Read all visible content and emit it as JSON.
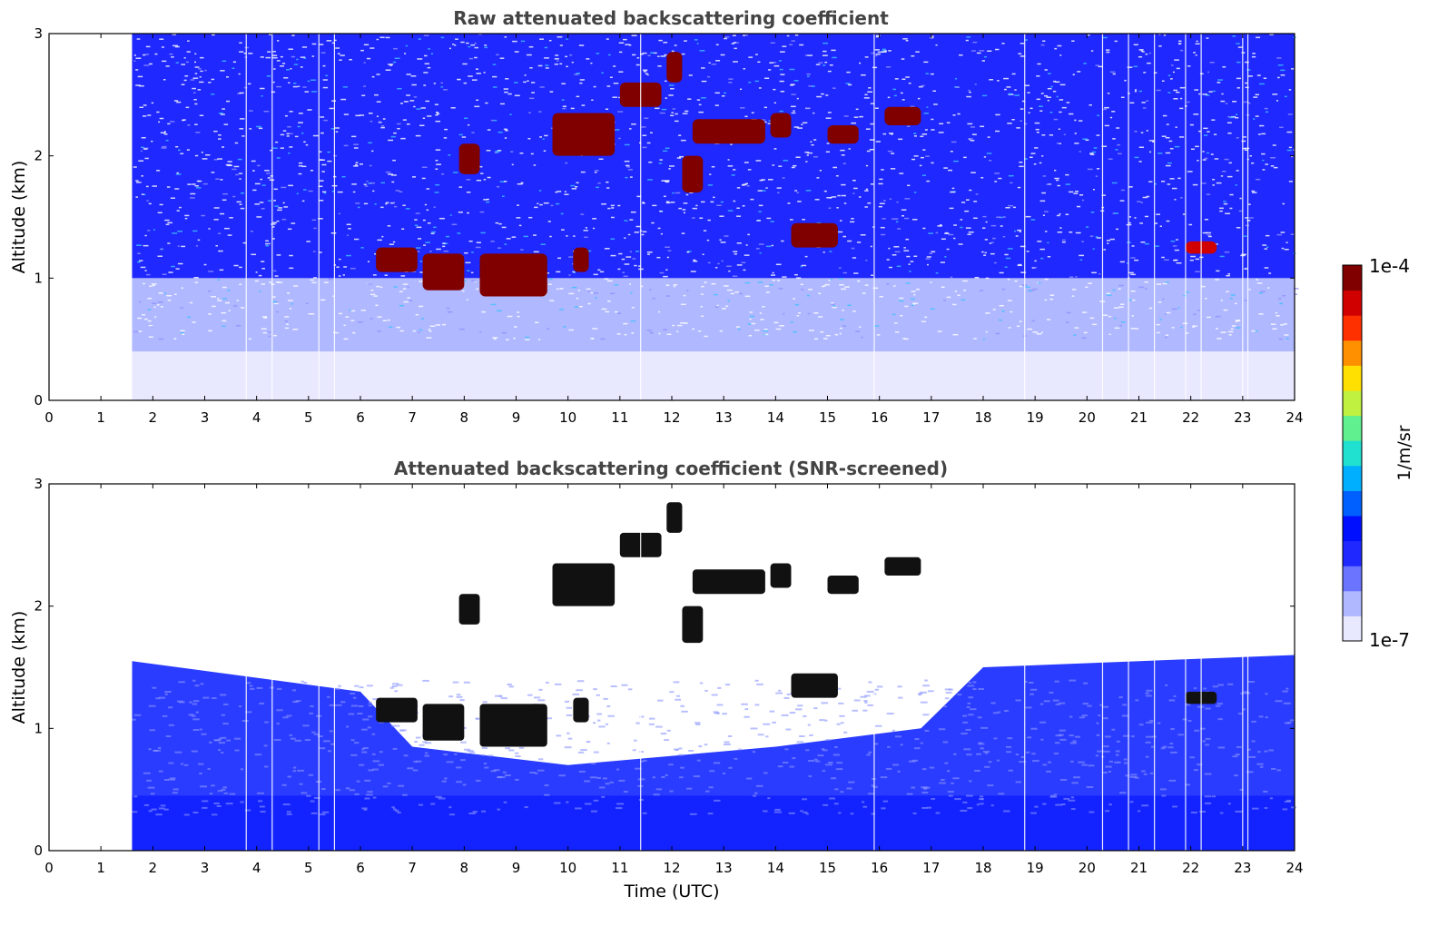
{
  "chart_data": [
    {
      "type": "heatmap",
      "title": "Raw attenuated backscattering coefficient",
      "xlabel": "",
      "ylabel": "Altitude (km)",
      "xlim": [
        0,
        24
      ],
      "ylim": [
        0,
        3
      ],
      "x_ticks": [
        "0",
        "1",
        "2",
        "3",
        "4",
        "5",
        "6",
        "7",
        "8",
        "9",
        "10",
        "11",
        "12",
        "13",
        "14",
        "15",
        "16",
        "17",
        "18",
        "19",
        "20",
        "21",
        "22",
        "23",
        "24"
      ],
      "y_ticks": [
        "0",
        "1",
        "2",
        "3"
      ],
      "data_start_time": 1.6,
      "background_level": [
        {
          "alt_top": 0.4,
          "value": 1.5e-07
        },
        {
          "alt_top": 1.0,
          "value": 2e-07
        },
        {
          "alt_top": 3.0,
          "value": 4e-07
        }
      ],
      "cloud_layers": [
        {
          "t_start": 6.3,
          "t_end": 7.1,
          "alt_base": 1.05,
          "alt_top": 1.25,
          "value": 8e-05
        },
        {
          "t_start": 7.2,
          "t_end": 8.0,
          "alt_base": 0.9,
          "alt_top": 1.2,
          "value": 9e-05
        },
        {
          "t_start": 8.3,
          "t_end": 9.6,
          "alt_base": 0.85,
          "alt_top": 1.2,
          "value": 8e-05
        },
        {
          "t_start": 7.9,
          "t_end": 8.3,
          "alt_base": 1.85,
          "alt_top": 2.1,
          "value": 9e-05
        },
        {
          "t_start": 10.1,
          "t_end": 10.4,
          "alt_base": 1.05,
          "alt_top": 1.25,
          "value": 8e-05
        },
        {
          "t_start": 11.0,
          "t_end": 11.8,
          "alt_base": 2.4,
          "alt_top": 2.6,
          "value": 9e-05
        },
        {
          "t_start": 11.9,
          "t_end": 12.2,
          "alt_base": 2.6,
          "alt_top": 2.85,
          "value": 8e-05
        },
        {
          "t_start": 12.4,
          "t_end": 13.8,
          "alt_base": 2.1,
          "alt_top": 2.3,
          "value": 9e-05
        },
        {
          "t_start": 13.9,
          "t_end": 14.3,
          "alt_base": 2.15,
          "alt_top": 2.35,
          "value": 8e-05
        },
        {
          "t_start": 14.3,
          "t_end": 15.2,
          "alt_base": 1.25,
          "alt_top": 1.45,
          "value": 7e-05
        },
        {
          "t_start": 15.0,
          "t_end": 15.6,
          "alt_base": 2.1,
          "alt_top": 2.25,
          "value": 8e-05
        },
        {
          "t_start": 16.1,
          "t_end": 16.8,
          "alt_base": 2.25,
          "alt_top": 2.4,
          "value": 9e-05
        },
        {
          "t_start": 9.7,
          "t_end": 10.9,
          "alt_base": 2.0,
          "alt_top": 2.35,
          "value": 8e-05
        },
        {
          "t_start": 12.2,
          "t_end": 12.6,
          "alt_base": 1.7,
          "alt_top": 2.0,
          "value": 7e-05
        },
        {
          "t_start": 21.9,
          "t_end": 22.5,
          "alt_base": 1.2,
          "alt_top": 1.3,
          "value": 6e-05
        }
      ],
      "dropouts": [
        3.8,
        4.3,
        5.2,
        5.5,
        11.4,
        15.9,
        18.8,
        20.3,
        20.8,
        21.3,
        21.9,
        22.2,
        23.0,
        23.1
      ]
    },
    {
      "type": "heatmap",
      "title": "Attenuated backscattering coefficient (SNR-screened)",
      "xlabel": "Time (UTC)",
      "ylabel": "Altitude (km)",
      "xlim": [
        0,
        24
      ],
      "ylim": [
        0,
        3
      ],
      "x_ticks": [
        "0",
        "1",
        "2",
        "3",
        "4",
        "5",
        "6",
        "7",
        "8",
        "9",
        "10",
        "11",
        "12",
        "13",
        "14",
        "15",
        "16",
        "17",
        "18",
        "19",
        "20",
        "21",
        "22",
        "23",
        "24"
      ],
      "y_ticks": [
        "0",
        "1",
        "2",
        "3"
      ],
      "data_start_time": 1.6,
      "screened_top_altitude": [
        {
          "t": 1.6,
          "alt": 1.55
        },
        {
          "t": 6.0,
          "alt": 1.3
        },
        {
          "t": 7.0,
          "alt": 0.85
        },
        {
          "t": 10.0,
          "alt": 0.7
        },
        {
          "t": 14.0,
          "alt": 0.85
        },
        {
          "t": 16.8,
          "alt": 1.0
        },
        {
          "t": 18.0,
          "alt": 1.5
        },
        {
          "t": 24.0,
          "alt": 1.6
        }
      ]
    }
  ],
  "colorbar": {
    "label": "1/m/sr",
    "max_label": "1e-4",
    "min_label": "1e-7",
    "scale": "log",
    "range": [
      1e-07,
      0.0001
    ],
    "colors": [
      "#e8e8ff",
      "#b0b8ff",
      "#6a74ff",
      "#1e28ff",
      "#0010ff",
      "#0060ff",
      "#00b0ff",
      "#20e0d0",
      "#60f090",
      "#c0f040",
      "#ffe000",
      "#ff9000",
      "#ff3000",
      "#d00000",
      "#800000"
    ]
  }
}
